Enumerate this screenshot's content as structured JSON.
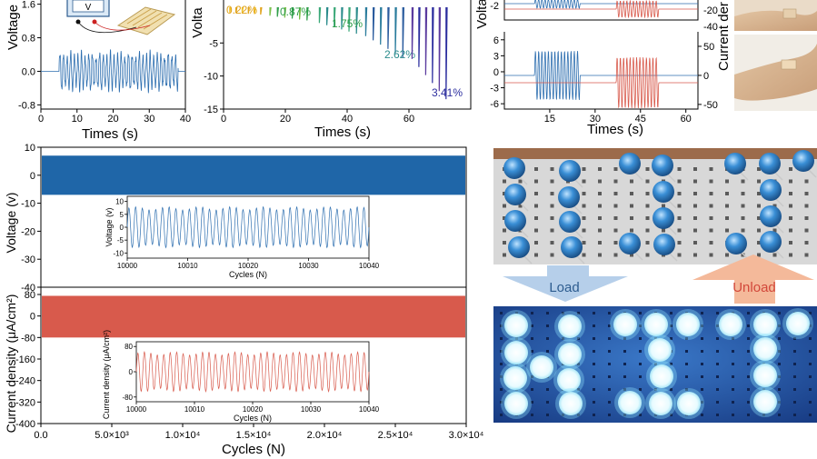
{
  "colors": {
    "blue": "#2e6fb0",
    "blue_dense": "#1f66a8",
    "red": "#d85a4c",
    "axis": "#000000",
    "green": "#2f9e4a",
    "orange": "#e0a21a",
    "teal": "#2b8c8c",
    "navy": "#2b2d9e",
    "led_off": "#3a8fd6",
    "led_on": "#e8fbff",
    "panel_dark": "#1c3f8a",
    "arrow_load": "#b6cfea",
    "arrow_unload": "#f4b99a",
    "unload_text": "#d2473a",
    "load_text": "#2d5c8f"
  },
  "chart_data": [
    {
      "id": "a",
      "type": "line",
      "title": "",
      "xlabel": "Times (s)",
      "ylabel": "Voltage",
      "xlim": [
        0,
        40
      ],
      "ylim": [
        -0.9,
        1.7
      ],
      "x_ticks": [
        "0",
        "10",
        "20",
        "30",
        "40"
      ],
      "y_ticks": [
        "1.6",
        "0.8",
        "0.0",
        "-0.8"
      ],
      "series": [
        {
          "name": "voltage",
          "x_active": [
            5,
            38
          ],
          "amplitude": 0.45,
          "cycles": 33
        }
      ],
      "inset_labels": [
        "V"
      ]
    },
    {
      "id": "b",
      "type": "line",
      "xlabel": "Times (s)",
      "ylabel": "Volta",
      "xlim": [
        0,
        80
      ],
      "ylim": [
        -15,
        1.5
      ],
      "x_ticks": [
        "0",
        "20",
        "40",
        "60"
      ],
      "y_ticks": [
        "-5",
        "-10",
        "-15"
      ],
      "strain_labels": [
        "0.22%",
        "0.87%",
        "1.75%",
        "2.62%",
        "3.41%"
      ],
      "bursts": [
        {
          "label": "0.22%",
          "x": [
            2,
            12
          ],
          "min": -0.7
        },
        {
          "label": "0.87%",
          "x": [
            15,
            27
          ],
          "min": -1.6
        },
        {
          "label": "1.75%",
          "x": [
            31,
            43
          ],
          "min": -3.6
        },
        {
          "label": "2.62%",
          "x": [
            46,
            58
          ],
          "min": -7.2
        },
        {
          "label": "3.41%",
          "x": [
            61,
            72
          ],
          "min": -13.5
        }
      ]
    },
    {
      "id": "c",
      "type": "line",
      "xlabel": "Times (s)",
      "ylabel_left": "Volta",
      "ylabel_right": "Current der",
      "xlim": [
        0,
        64
      ],
      "top_y_ticks_right": [
        "-20",
        "-40"
      ],
      "top_y_ticks_left": [
        "-2"
      ],
      "bottom_y_ticks_left": [
        "6",
        "3",
        "0",
        "-3",
        "-6"
      ],
      "bottom_y_ticks_right": [
        "50",
        "0",
        "-50"
      ],
      "x_ticks": [
        "15",
        "30",
        "45",
        "60"
      ],
      "series": [
        {
          "name": "voltage",
          "x_active": [
            10,
            25
          ]
        },
        {
          "name": "current density",
          "x_active": [
            37,
            51
          ]
        }
      ]
    },
    {
      "id": "d",
      "type": "line",
      "xlabel": "Cycles (N)",
      "ylabel_top": "Voltage (v)",
      "ylabel_bottom": "Current density (μA/cm²)",
      "xlim": [
        0,
        30000
      ],
      "x_ticks": [
        "0.0",
        "5.0×10³",
        "1.0×10⁴",
        "1.5×10⁴",
        "2.0×10⁴",
        "2.5×10⁴",
        "3.0×10⁴"
      ],
      "voltage_ylim": [
        -40,
        10
      ],
      "voltage_y_ticks": [
        "10",
        "0",
        "-10",
        "-20",
        "-30",
        "-40"
      ],
      "voltage_band": [
        -7,
        7
      ],
      "current_ylim": [
        -400,
        80
      ],
      "current_y_ticks": [
        "80",
        "0",
        "-80",
        "-160",
        "-240",
        "-320",
        "-400"
      ],
      "current_band": [
        -80,
        75
      ],
      "inset_voltage": {
        "xlabel": "Cycles (N)",
        "ylabel": "Voltage (v)",
        "x_ticks": [
          "10000",
          "10010",
          "10020",
          "10030",
          "10040"
        ],
        "y_ticks": [
          "10",
          "5",
          "0",
          "-5",
          "-10"
        ],
        "cycles": 36
      },
      "inset_current": {
        "xlabel": "Cycles (N)",
        "ylabel": "Current density (μA/cm²)",
        "x_ticks": [
          "10000",
          "10010",
          "10020",
          "10030",
          "10040"
        ],
        "y_ticks": [
          "80",
          "0",
          "-80"
        ],
        "cycles": 36
      }
    }
  ],
  "photo": {
    "load_label": "Load",
    "unload_label": "Unload"
  }
}
